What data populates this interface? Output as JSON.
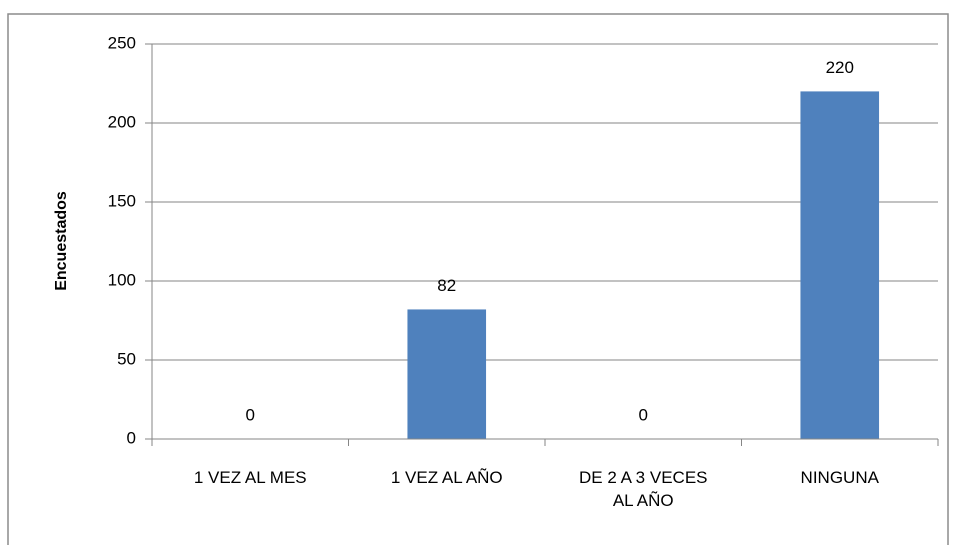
{
  "chart_data": {
    "type": "bar",
    "y_label": "Encuestados",
    "categories": [
      "1 VEZ AL MES",
      "1 VEZ AL AÑO",
      "DE 2 A 3 VECES AL AÑO",
      "NINGUNA"
    ],
    "values": [
      0,
      82,
      0,
      220
    ],
    "color": "#4f81bd",
    "ylim": [
      0,
      250
    ],
    "yticks": [
      0,
      50,
      100,
      150,
      200,
      250
    ],
    "grid": true
  }
}
